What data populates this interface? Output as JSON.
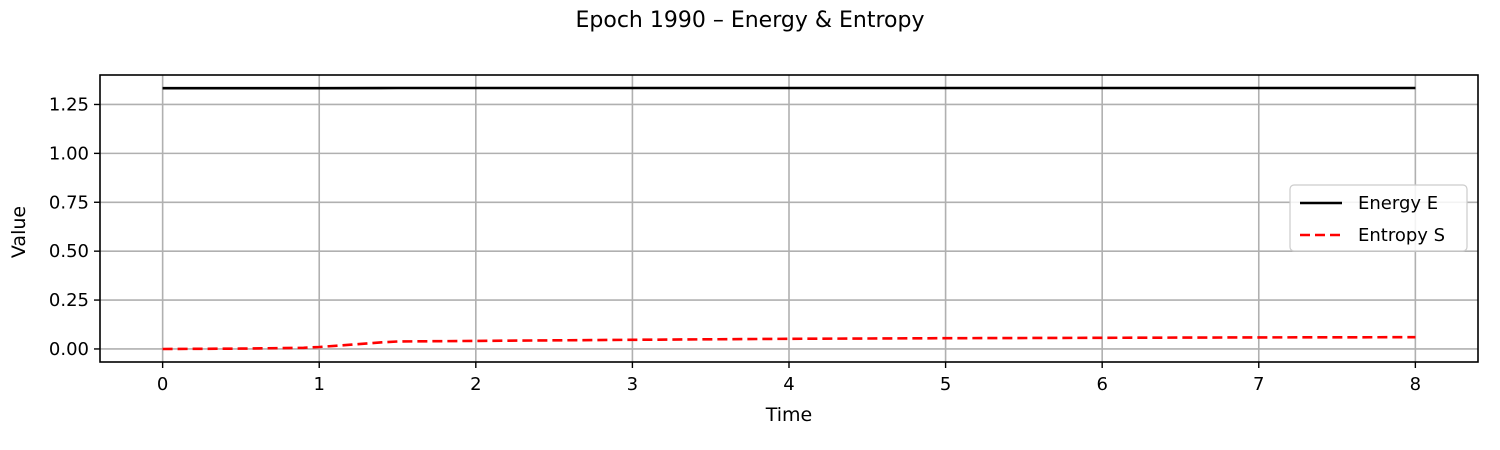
{
  "chart_data": {
    "type": "line",
    "title": "Epoch 1990 – Energy & Entropy",
    "xlabel": "Time",
    "ylabel": "Value",
    "xlim": [
      -0.4,
      8.4
    ],
    "ylim": [
      -0.0667,
      1.4007
    ],
    "xticks": [
      0,
      1,
      2,
      3,
      4,
      5,
      6,
      7,
      8
    ],
    "xtick_labels": [
      "0",
      "1",
      "2",
      "3",
      "4",
      "5",
      "6",
      "7",
      "8"
    ],
    "yticks": [
      0,
      0.25,
      0.5,
      0.75,
      1.0,
      1.25
    ],
    "ytick_labels": [
      "0.00",
      "0.25",
      "0.50",
      "0.75",
      "1.00",
      "1.25"
    ],
    "grid": true,
    "legend_position": "center-right",
    "series": [
      {
        "name": "Energy E",
        "color": "#000000",
        "style": "solid",
        "x": [
          0,
          0.5,
          1.0,
          1.5,
          2,
          3,
          4,
          5,
          6,
          7,
          8
        ],
        "y": [
          1.333,
          1.333,
          1.333,
          1.334,
          1.334,
          1.334,
          1.334,
          1.334,
          1.334,
          1.334,
          1.334
        ]
      },
      {
        "name": "Entropy S",
        "color": "#ff0000",
        "style": "dashed",
        "x": [
          0,
          0.5,
          0.9,
          1.0,
          1.2,
          1.4,
          1.5,
          2,
          3,
          4,
          5,
          6,
          7,
          8
        ],
        "y": [
          0.0,
          0.002,
          0.006,
          0.01,
          0.022,
          0.034,
          0.038,
          0.041,
          0.047,
          0.052,
          0.055,
          0.057,
          0.059,
          0.06
        ]
      }
    ]
  }
}
